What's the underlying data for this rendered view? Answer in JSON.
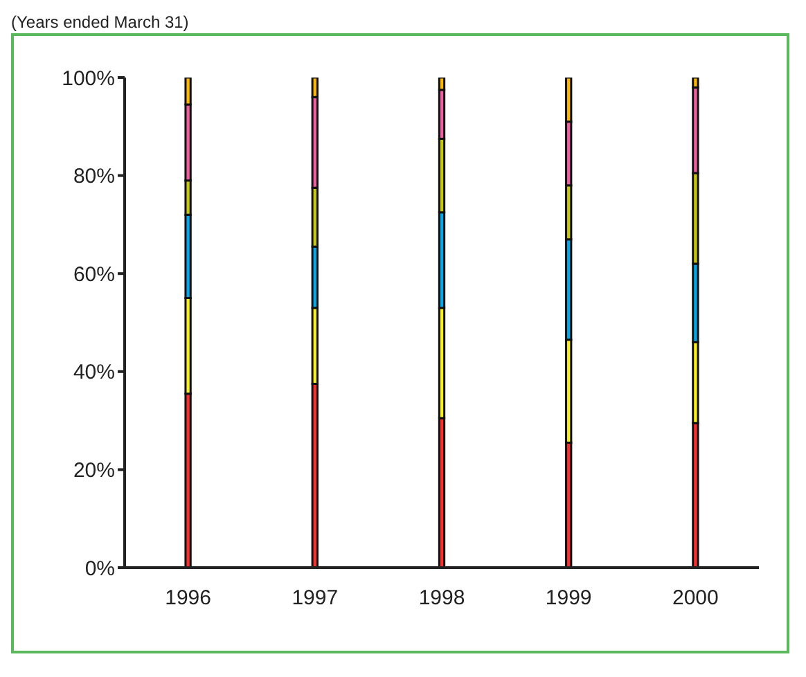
{
  "chart_data": {
    "type": "bar",
    "stacked": true,
    "subtitle": "(Years ended March 31)",
    "categories": [
      "1996",
      "1997",
      "1998",
      "1999",
      "2000"
    ],
    "series": [
      {
        "color": "#f83030",
        "values": [
          35.5,
          37.5,
          30.5,
          25.5,
          29.5
        ]
      },
      {
        "color": "#f8f020",
        "values": [
          19.5,
          15.5,
          22.5,
          21,
          16.5
        ]
      },
      {
        "color": "#08a8e8",
        "values": [
          17,
          12.5,
          19.5,
          20.5,
          16
        ]
      },
      {
        "color": "#c8c810",
        "values": [
          7,
          12,
          15,
          11,
          18.5
        ]
      },
      {
        "color": "#f060a0",
        "values": [
          15.5,
          18.5,
          10,
          13,
          17.5
        ]
      },
      {
        "color": "#ffb800",
        "values": [
          5.5,
          4,
          2.5,
          9,
          2
        ]
      }
    ],
    "ylim": [
      0,
      100
    ],
    "yticks": [
      {
        "value": 0,
        "label": "0%"
      },
      {
        "value": 20,
        "label": "20%"
      },
      {
        "value": 40,
        "label": "40%"
      },
      {
        "value": 60,
        "label": "60%"
      },
      {
        "value": 80,
        "label": "80%"
      },
      {
        "value": 100,
        "label": "100%"
      }
    ],
    "grid": false,
    "legend": false
  }
}
